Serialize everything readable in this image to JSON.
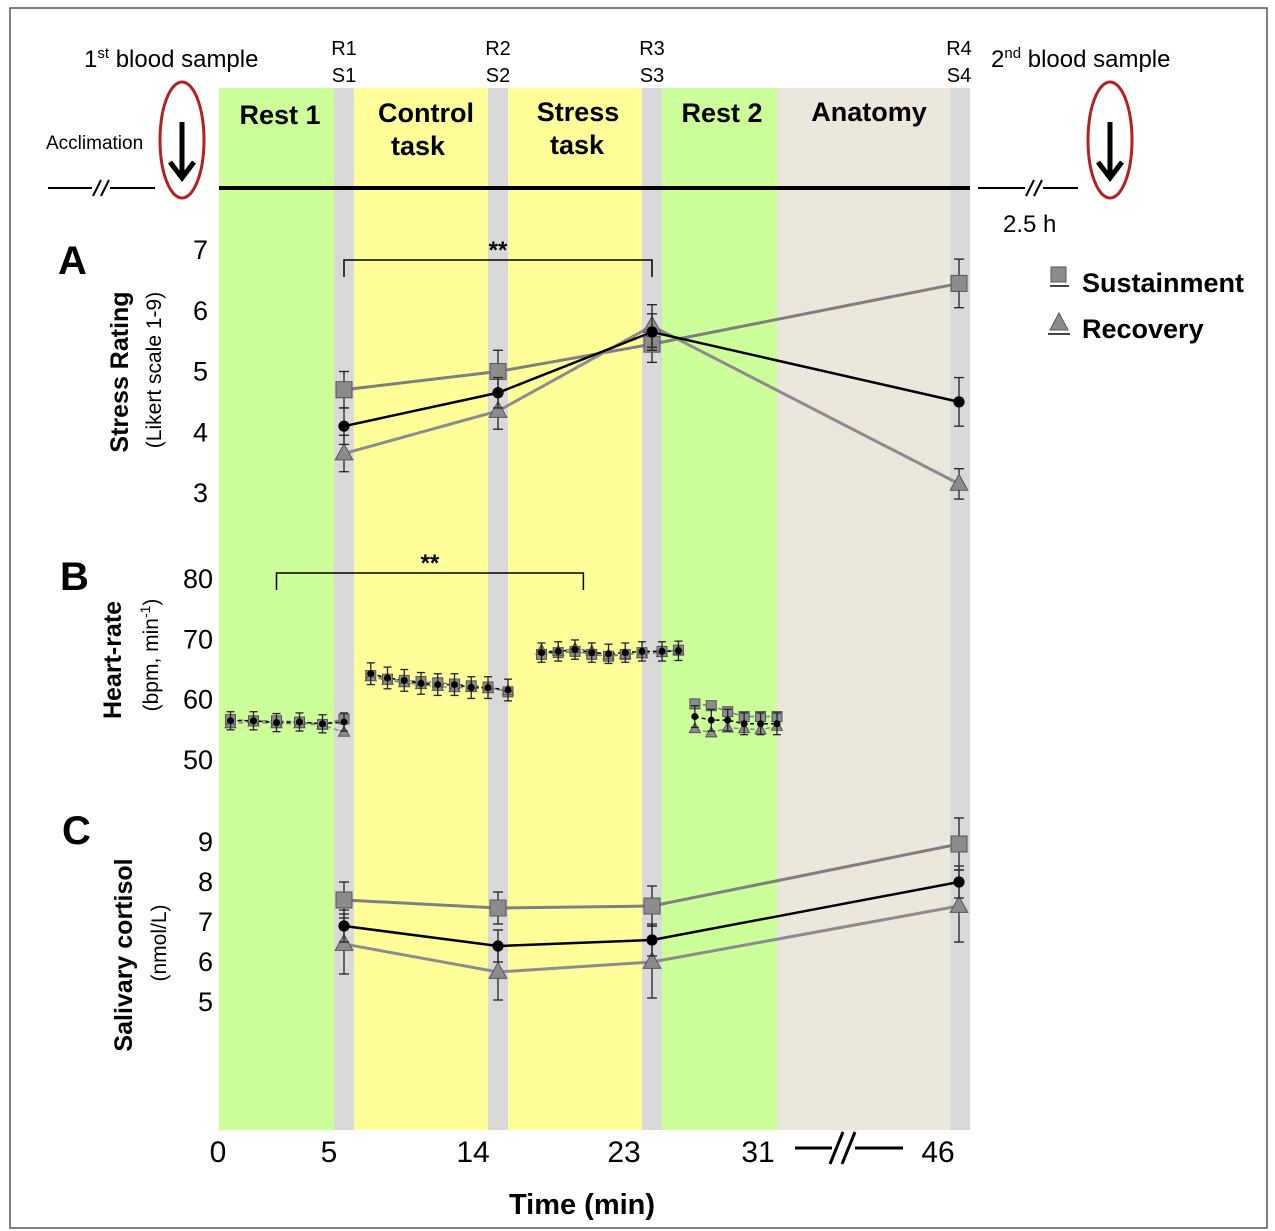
{
  "colors": {
    "rest": "#ccff99",
    "task": "#ffff99",
    "anatomy": "#ebe7dd",
    "sample_bar": "#d9d9d9",
    "oval": "#b22222",
    "all": "#000000",
    "sustainment": "#7f7f7f",
    "recovery": "#8c8c8c"
  },
  "header": {
    "blood1_prefix": "1",
    "blood1_sup": "st",
    "blood1_suffix": " blood sample",
    "blood2_prefix": "2",
    "blood2_sup": "nd",
    "blood2_suffix": " blood sample",
    "acclimation": "Acclimation",
    "duration": "2.5 h",
    "arrow_icon": "down-arrow-icon",
    "samples": [
      {
        "r": "R1",
        "s": "S1"
      },
      {
        "r": "R2",
        "s": "S2"
      },
      {
        "r": "R3",
        "s": "S3"
      },
      {
        "r": "R4",
        "s": "S4"
      }
    ],
    "phases": [
      {
        "line1": "Rest 1",
        "line2": ""
      },
      {
        "line1": "Control",
        "line2": "task"
      },
      {
        "line1": "Stress",
        "line2": "task"
      },
      {
        "line1": "Rest 2",
        "line2": ""
      },
      {
        "line1": "Anatomy",
        "line2": ""
      }
    ]
  },
  "legend": [
    {
      "label": "Sustainment",
      "marker": "square"
    },
    {
      "label": "Recovery",
      "marker": "triangle"
    }
  ],
  "xaxis": {
    "label": "Time (min)",
    "ticks": [
      "0",
      "5",
      "14",
      "23",
      "31",
      "46"
    ]
  },
  "chart_data": [
    {
      "type": "line",
      "panel": "A",
      "ylabel": "Stress Rating",
      "ylabel_sub": "(Likert scale 1-9)",
      "yticks": [
        3,
        4,
        5,
        6,
        7
      ],
      "ylim": [
        3,
        7
      ],
      "significance": {
        "label": "**",
        "from": "R1",
        "to": "R3"
      },
      "categories": [
        "S1",
        "S2",
        "S3",
        "S4"
      ],
      "x": [
        5.5,
        14.5,
        23.5,
        46
      ],
      "series": [
        {
          "key": "all",
          "values": [
            4.1,
            4.65,
            5.65,
            4.5
          ],
          "error": [
            0.3,
            0.25,
            0.3,
            0.4
          ]
        },
        {
          "key": "sustainment",
          "name": "Sustainment",
          "values": [
            4.7,
            5.0,
            5.45,
            6.45
          ],
          "error": [
            0.3,
            0.35,
            0.3,
            0.4
          ]
        },
        {
          "key": "recovery",
          "name": "Recovery",
          "values": [
            3.65,
            4.35,
            5.75,
            3.15
          ],
          "error": [
            0.3,
            0.3,
            0.35,
            0.25
          ]
        }
      ]
    },
    {
      "type": "line",
      "panel": "B",
      "ylabel": "Heart-rate",
      "ylabel_sub_prefix": "(bpm, min",
      "ylabel_sub_sup": "-1",
      "ylabel_sub_suffix": ")",
      "yticks": [
        50,
        60,
        70,
        80
      ],
      "ylim": [
        50,
        80
      ],
      "significance": {
        "label": "**",
        "from": "Rest 1",
        "to": "Stress task"
      },
      "segments": [
        {
          "phase": "Rest 1",
          "x": [
            0.5,
            1.5,
            2.5,
            3.5,
            4.5,
            5.5
          ],
          "all": [
            56.5,
            56.5,
            56.2,
            56.3,
            56.0,
            56.3
          ],
          "sustainment": [
            56.7,
            56.5,
            56.5,
            56.3,
            55.9,
            56.8
          ],
          "recovery": [
            56.0,
            56.3,
            56.0,
            56.0,
            55.8,
            54.6
          ],
          "error": 1.5
        },
        {
          "phase": "Control task",
          "x": [
            7,
            8,
            9,
            10,
            11,
            12,
            13,
            14,
            15
          ],
          "all": [
            64.3,
            63.6,
            63.2,
            62.7,
            62.5,
            62.5,
            62.0,
            62.0,
            61.6
          ],
          "sustainment": [
            64.0,
            63.4,
            63.2,
            63.0,
            62.8,
            62.6,
            62.3,
            62.1,
            61.3
          ],
          "recovery": [
            63.8,
            63.2,
            62.8,
            62.5,
            62.2,
            62.0,
            62.0,
            61.8,
            61.5
          ],
          "error": 1.8
        },
        {
          "phase": "Stress task",
          "x": [
            17,
            18,
            19,
            20,
            21,
            22,
            23,
            24,
            25
          ],
          "all": [
            67.8,
            68.0,
            68.3,
            67.8,
            67.6,
            67.8,
            68.0,
            68.0,
            68.1
          ],
          "sustainment": [
            67.5,
            67.8,
            68.0,
            67.5,
            67.2,
            67.5,
            67.8,
            68.0,
            68.2
          ],
          "recovery": [
            68.2,
            68.0,
            68.5,
            68.0,
            67.4,
            67.5,
            67.6,
            67.8,
            68.2
          ],
          "error": 1.6
        },
        {
          "phase": "Rest 2",
          "x": [
            26,
            27,
            28,
            29,
            30,
            31
          ],
          "all": [
            57.2,
            56.6,
            56.6,
            56.0,
            56.0,
            56.0
          ],
          "sustainment": [
            59.3,
            59.0,
            58.0,
            57.2,
            57.2,
            57.2
          ],
          "recovery": [
            55.2,
            54.5,
            55.3,
            55.2,
            55.0,
            55.6
          ],
          "error": 1.8
        }
      ]
    },
    {
      "type": "line",
      "panel": "C",
      "ylabel": "Salivary cortisol",
      "ylabel_sub": "(nmol/L)",
      "yticks": [
        5,
        6,
        7,
        8,
        9
      ],
      "ylim": [
        5,
        9
      ],
      "categories": [
        "S1",
        "S2",
        "S3",
        "S4"
      ],
      "x": [
        5.5,
        14.5,
        23.5,
        46
      ],
      "series": [
        {
          "key": "all",
          "values": [
            6.9,
            6.4,
            6.55,
            8.0
          ],
          "error": [
            0.4,
            0.4,
            0.4,
            0.4
          ]
        },
        {
          "key": "sustainment",
          "name": "Sustainment",
          "values": [
            7.55,
            7.35,
            7.4,
            8.95
          ],
          "error": [
            0.45,
            0.4,
            0.5,
            0.65
          ]
        },
        {
          "key": "recovery",
          "name": "Recovery",
          "values": [
            6.45,
            5.75,
            6.0,
            7.4
          ],
          "error": [
            0.75,
            0.7,
            0.9,
            0.9
          ]
        }
      ]
    }
  ]
}
